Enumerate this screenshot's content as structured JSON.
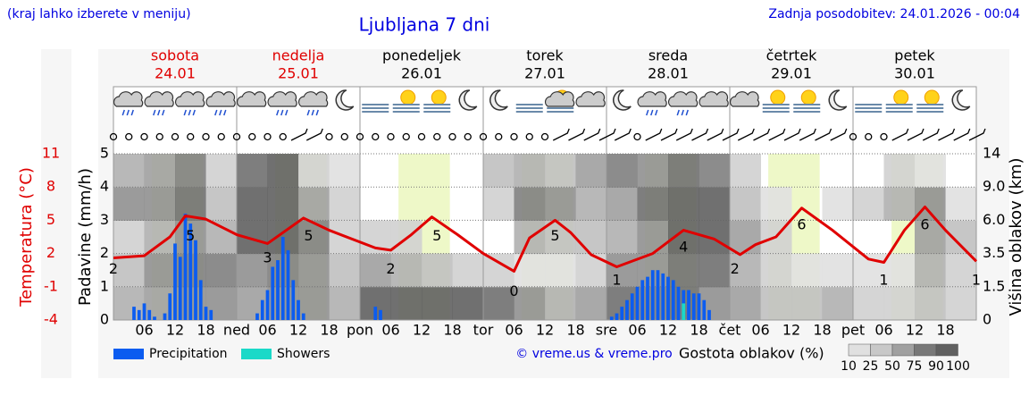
{
  "header": {
    "hint": "(kraj lahko izberete v meniju)",
    "updated": "Zadnja posodobitev: 24.01.2026 - 00:04"
  },
  "footer": {
    "copyright": "© vreme.us & vreme.pro"
  },
  "chart_data": {
    "type": "meteogram",
    "title": "Ljubljana 7 dni",
    "ylabel": "Padavine (mm/h)",
    "temp_label": "Temperatura (°C)",
    "y2label": "Višina oblakov (km)",
    "days": [
      {
        "name": "sobota",
        "date": "24.01",
        "color": "#e00000"
      },
      {
        "name": "nedelja",
        "date": "25.01",
        "color": "#e00000"
      },
      {
        "name": "ponedeljek",
        "date": "26.01",
        "color": "#000000"
      },
      {
        "name": "torek",
        "date": "27.01",
        "color": "#000000"
      },
      {
        "name": "sreda",
        "date": "28.01",
        "color": "#000000"
      },
      {
        "name": "četrtek",
        "date": "29.01",
        "color": "#000000"
      },
      {
        "name": "petek",
        "date": "30.01",
        "color": "#000000"
      }
    ],
    "xlim": [
      0,
      168
    ],
    "xticks": [
      {
        "value": 6,
        "label": "06"
      },
      12,
      18,
      {
        "value": 24,
        "label": "ned"
      },
      {
        "value": 30,
        "label": "06"
      },
      {
        "value": 36,
        "label": "12"
      },
      {
        "value": 42,
        "label": "18"
      },
      {
        "value": 48,
        "label": "pon"
      },
      {
        "value": 54,
        "label": "06"
      },
      {
        "value": 60,
        "label": "12"
      },
      {
        "value": 66,
        "label": "18"
      },
      {
        "value": 72,
        "label": "tor"
      },
      {
        "value": 78,
        "label": "06"
      },
      {
        "value": 84,
        "label": "12"
      },
      {
        "value": 90,
        "label": "18"
      },
      {
        "value": 96,
        "label": "sre"
      },
      {
        "value": 102,
        "label": "06"
      },
      {
        "value": 108,
        "label": "12"
      },
      {
        "value": 114,
        "label": "18"
      },
      {
        "value": 120,
        "label": "čet"
      },
      {
        "value": 126,
        "label": "06"
      },
      {
        "value": 132,
        "label": "12"
      },
      {
        "value": 138,
        "label": "18"
      },
      {
        "value": 144,
        "label": "pet"
      },
      {
        "value": 150,
        "label": "06"
      },
      {
        "value": 156,
        "label": "12"
      },
      {
        "value": 162,
        "label": "18"
      }
    ],
    "ylim": [
      0,
      5
    ],
    "yticks": [
      0,
      1,
      2,
      3,
      4,
      5
    ],
    "temp_lim": [
      -4,
      11
    ],
    "temp_ticks": [
      -4,
      -1,
      2,
      5,
      8,
      11
    ],
    "temp_color": "#e00000",
    "y2lim": [
      0,
      14
    ],
    "y2ticks": [
      0,
      1.5,
      3.5,
      {
        "value": 6,
        "label": "6.0"
      },
      {
        "value": 9,
        "label": "9.0"
      },
      14
    ],
    "grid": true,
    "series": [
      {
        "name": "Precipitation",
        "color": "#0b5cf0",
        "x": [
          4,
          5,
          6,
          7,
          8,
          10,
          11,
          12,
          13,
          14,
          15,
          16,
          17,
          18,
          19,
          28,
          29,
          30,
          31,
          32,
          33,
          34,
          35,
          36,
          37,
          51,
          52,
          97,
          98,
          99,
          100,
          101,
          102,
          103,
          104,
          105,
          106,
          107,
          108,
          109,
          110,
          111,
          112,
          113,
          114,
          115,
          116
        ],
        "values": [
          0.4,
          0.3,
          0.5,
          0.3,
          0.1,
          0.2,
          0.8,
          2.3,
          1.9,
          3.2,
          2.9,
          2.4,
          1.2,
          0.4,
          0.3,
          0.2,
          0.6,
          0.9,
          1.6,
          1.8,
          2.5,
          2.1,
          1.2,
          0.6,
          0.2,
          0.4,
          0.3,
          0.1,
          0.2,
          0.4,
          0.6,
          0.8,
          1.0,
          1.2,
          1.3,
          1.5,
          1.5,
          1.4,
          1.3,
          1.2,
          1.0,
          0.9,
          0.9,
          0.8,
          0.8,
          0.6,
          0.3
        ]
      },
      {
        "name": "Showers",
        "color": "#1ad9c8",
        "x": [
          111
        ],
        "values": [
          0.5
        ]
      }
    ],
    "temperature": {
      "x": [
        0,
        6,
        11,
        14,
        18,
        24,
        30,
        37,
        42,
        51,
        54,
        58,
        62,
        67,
        72,
        78,
        81,
        86,
        89,
        93,
        98,
        105,
        111,
        117,
        122,
        125,
        129,
        134,
        140,
        147,
        150,
        154,
        158,
        162,
        168
      ],
      "values": [
        1.6,
        1.8,
        3.5,
        5.4,
        5.1,
        3.7,
        2.9,
        5.2,
        4.1,
        2.5,
        2.3,
        3.7,
        5.3,
        3.7,
        2.0,
        0.4,
        3.4,
        5.0,
        3.9,
        1.9,
        0.8,
        2.0,
        4.1,
        3.3,
        1.9,
        2.8,
        3.5,
        6.1,
        4.1,
        1.5,
        1.2,
        4.1,
        6.2,
        4.1,
        1.3
      ],
      "label_x": [
        0,
        15,
        30,
        38,
        54,
        63,
        78,
        86,
        98,
        111,
        121,
        134,
        150,
        158,
        168
      ],
      "labels": [
        2,
        5,
        3,
        5,
        2,
        5,
        0,
        5,
        1,
        4,
        2,
        6,
        1,
        6,
        1
      ]
    },
    "cloud_density": {
      "label": "Gostota oblakov (%)",
      "scale": [
        10,
        25,
        50,
        75,
        90,
        100
      ],
      "values": [
        [
          40,
          30,
          20,
          60,
          40
        ],
        [
          50,
          60,
          40,
          60,
          50
        ],
        [
          60,
          70,
          60,
          80,
          70
        ],
        [
          60,
          70,
          40,
          30,
          20
        ],
        [
          50,
          60,
          90,
          90,
          80
        ],
        [
          60,
          70,
          90,
          90,
          90
        ],
        [
          60,
          60,
          70,
          50,
          20
        ],
        [
          40,
          30,
          20,
          20,
          10
        ],
        [
          90,
          50,
          20,
          0,
          0
        ],
        [
          90,
          40,
          20,
          0,
          0
        ],
        [
          90,
          30,
          0,
          0,
          0
        ],
        [
          90,
          20,
          0,
          0,
          0
        ],
        [
          80,
          20,
          0,
          20,
          30
        ],
        [
          60,
          10,
          40,
          70,
          40
        ],
        [
          40,
          10,
          30,
          60,
          30
        ],
        [
          50,
          20,
          30,
          40,
          50
        ],
        [
          80,
          60,
          40,
          50,
          70
        ],
        [
          70,
          60,
          60,
          80,
          60
        ],
        [
          80,
          80,
          90,
          90,
          80
        ],
        [
          60,
          80,
          90,
          90,
          70
        ],
        [
          50,
          40,
          50,
          30,
          20
        ],
        [
          30,
          20,
          20,
          10,
          0
        ],
        [
          30,
          10,
          0,
          0,
          0
        ],
        [
          40,
          10,
          0,
          10,
          0
        ],
        [
          20,
          10,
          0,
          20,
          0
        ],
        [
          20,
          10,
          0,
          40,
          20
        ],
        [
          30,
          40,
          50,
          60,
          10
        ],
        [
          20,
          20,
          30,
          10,
          0
        ]
      ]
    }
  }
}
